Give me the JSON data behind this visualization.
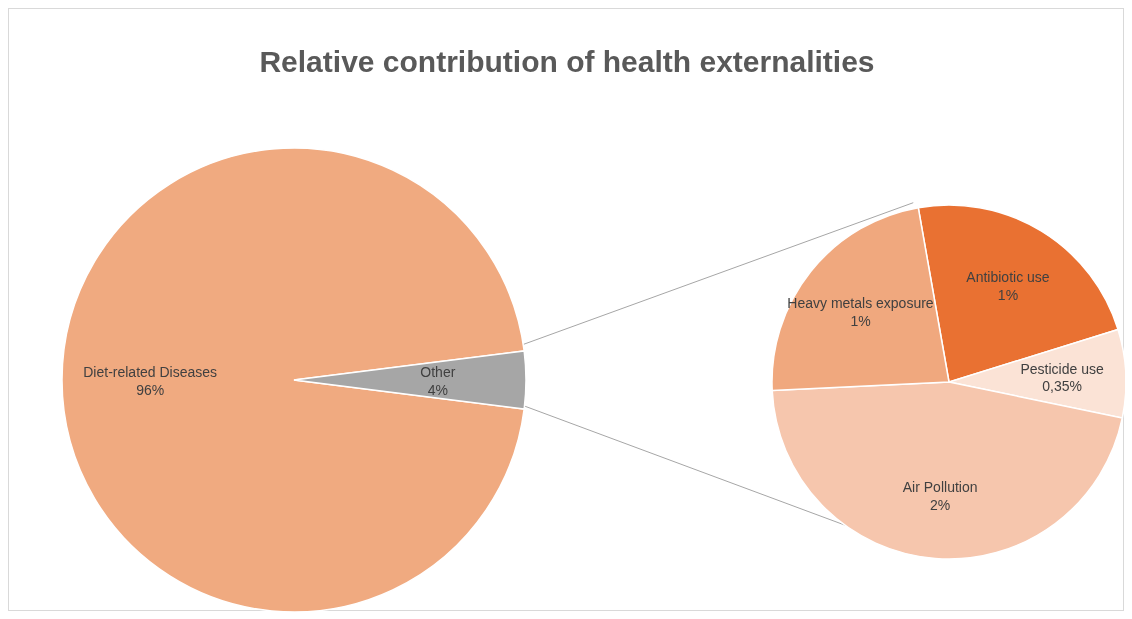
{
  "chart_data": [
    {
      "type": "pie",
      "title": "Relative contribution of health externalities",
      "categories": [
        "Diet-related Diseases",
        "Other"
      ],
      "values": [
        96,
        4
      ],
      "colors": [
        "#f0aa80",
        "#a6a6a6"
      ],
      "value_labels": [
        "96%",
        "4%"
      ]
    },
    {
      "type": "pie",
      "categories": [
        "Antibiotic use",
        "Pesticide use",
        "Air Pollution",
        "Heavy metals exposure"
      ],
      "values": [
        1,
        0.35,
        2,
        1
      ],
      "colors": [
        "#e97132",
        "#fbe3d6",
        "#f6c6ad",
        "#f0a87e"
      ],
      "value_labels": [
        "1%",
        "0,35%",
        "2%",
        "1%"
      ]
    }
  ]
}
